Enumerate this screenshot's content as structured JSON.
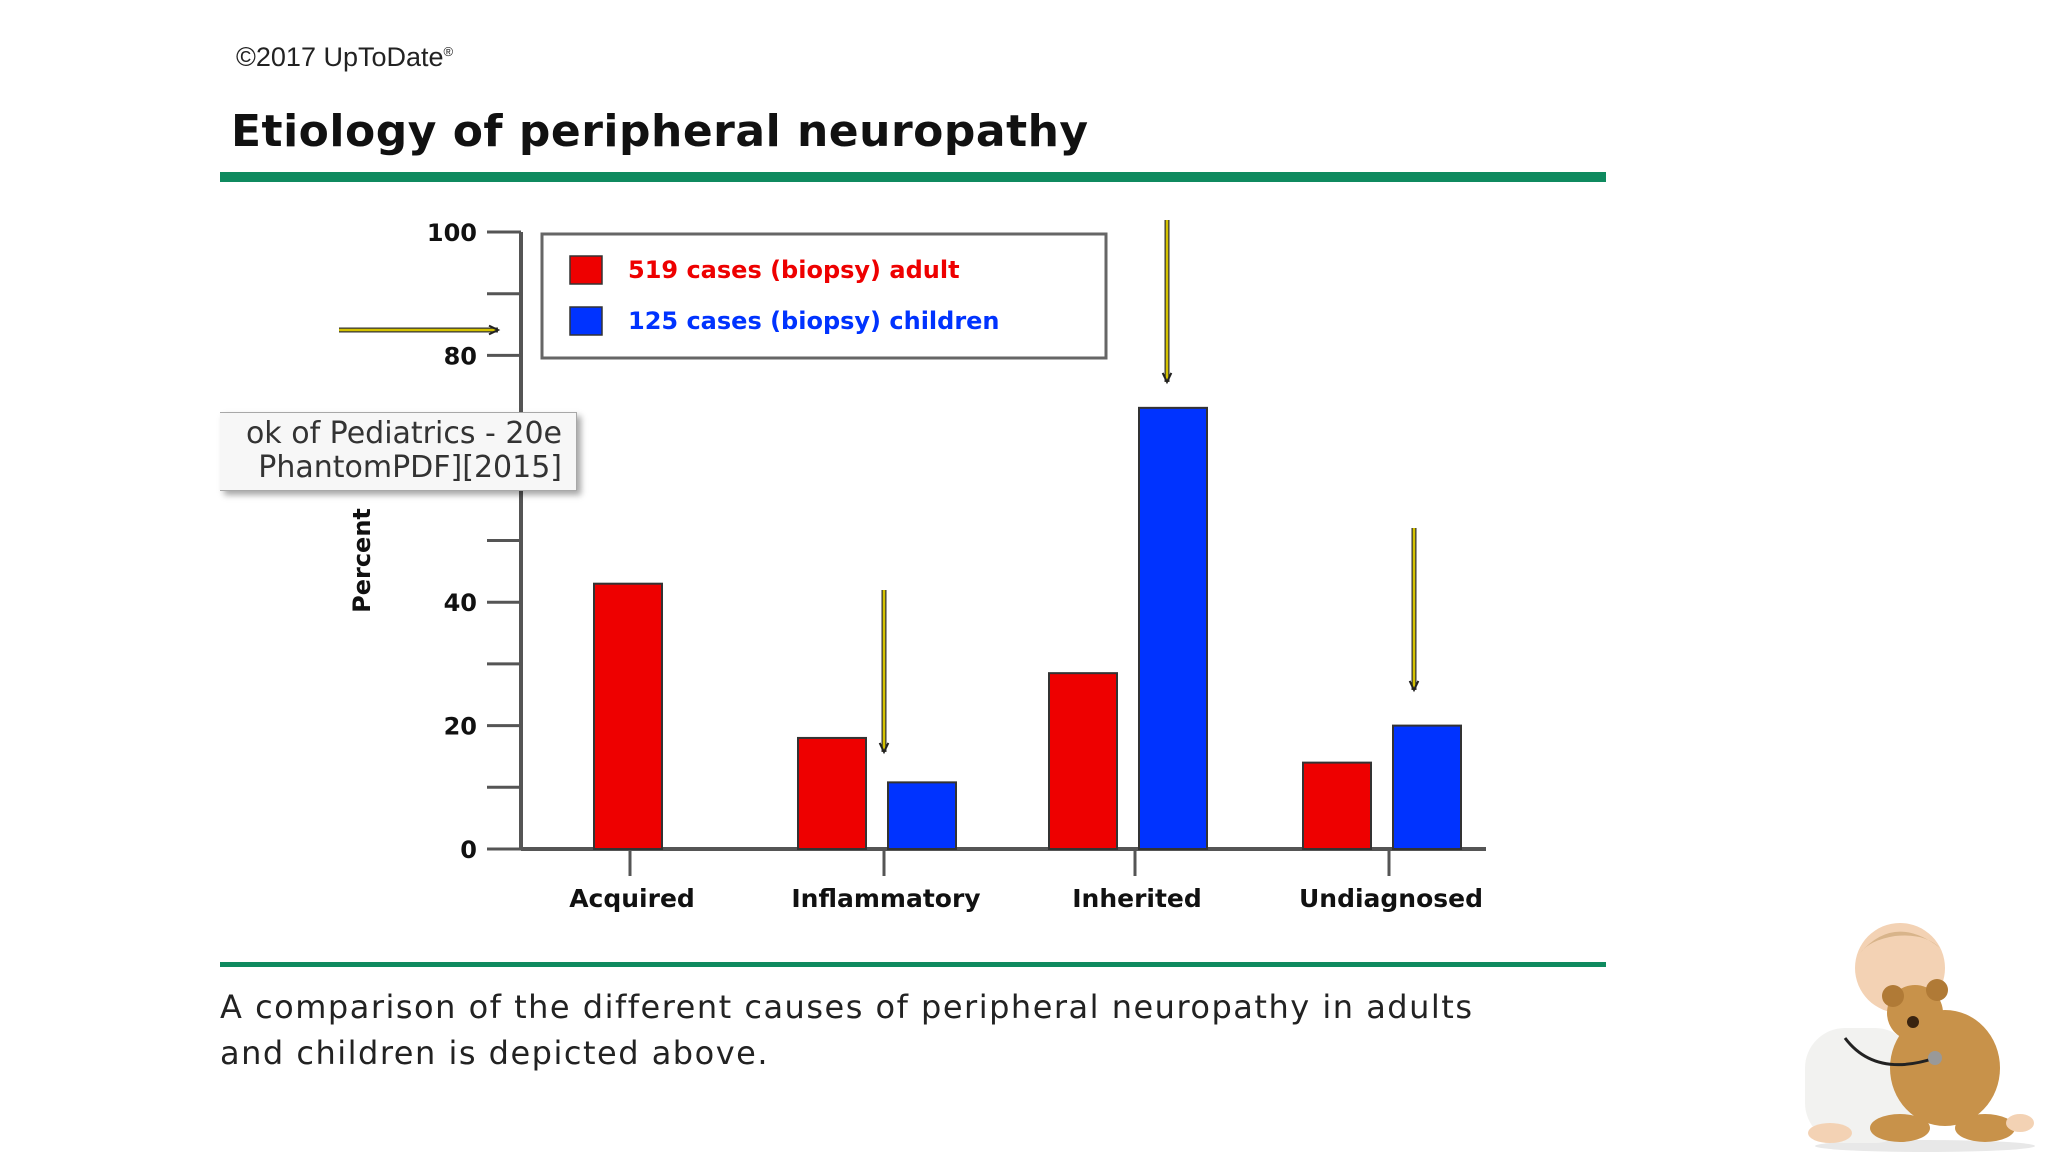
{
  "header": {
    "copyright": "©2017 UpToDate",
    "copyright_mark": "®",
    "title": "Etiology of peripheral neuropathy"
  },
  "caption": "A comparison of the different causes of peripheral neuropathy in adults and children is depicted above.",
  "tooltip": {
    "line1": "ok of Pediatrics - 20e",
    "line2": "PhantomPDF][2015]"
  },
  "colors": {
    "adult": "#ee0000",
    "children": "#0033ff",
    "rule": "#0f8a5f",
    "arrow": "#d4c200"
  },
  "chart_data": {
    "type": "bar",
    "categories": [
      "Acquired",
      "Inflammatory",
      "Inherited",
      "Undiagnosed"
    ],
    "series": [
      {
        "name": "519 cases (biopsy) adult",
        "values": [
          43,
          18,
          28.5,
          14
        ]
      },
      {
        "name": "125 cases (biopsy) children",
        "values": [
          null,
          10.8,
          71.5,
          20
        ]
      }
    ],
    "ylabel": "Percent",
    "ylim": [
      0,
      100
    ],
    "yticks": [
      0,
      20,
      40,
      80,
      100
    ],
    "yminor": [
      10,
      30,
      50,
      60,
      70,
      90
    ],
    "legend": "top",
    "grid": false,
    "annotations": "hand-drawn arrows pointing to 80% level and to children bars for Inflammatory, Inherited and Undiagnosed"
  }
}
